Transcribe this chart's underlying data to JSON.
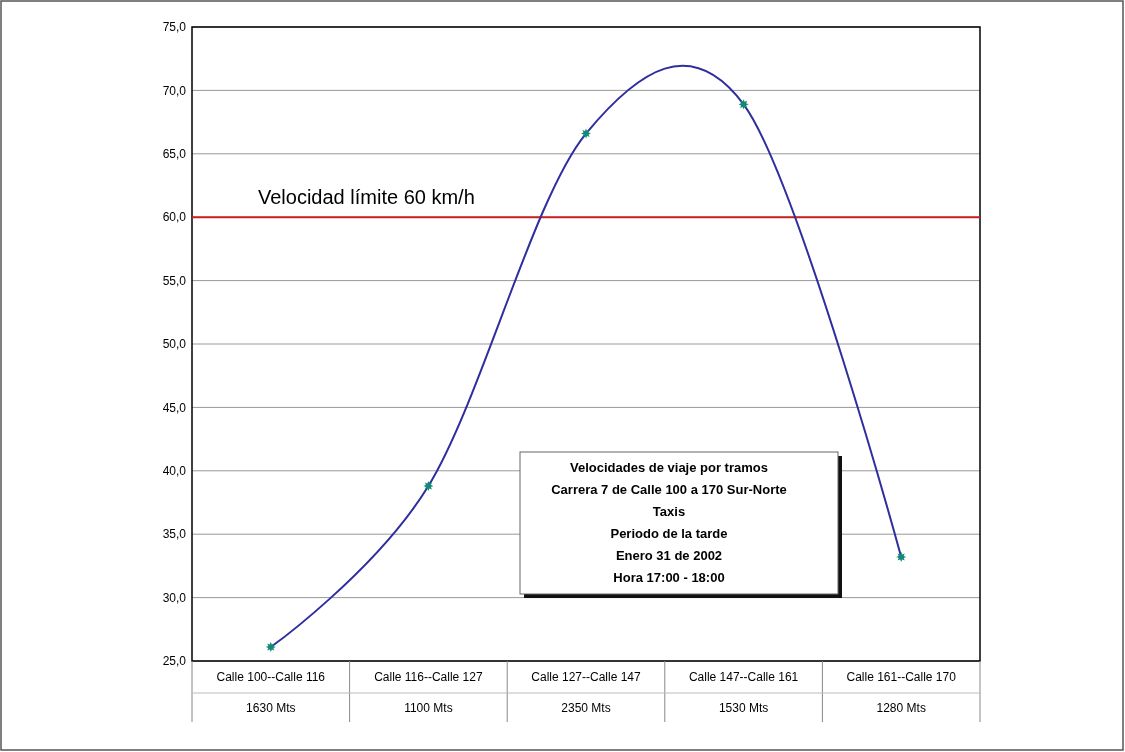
{
  "chart_data": {
    "type": "line",
    "title": "Velocidades de viaje por tramos\nCarrera 7 de Calle 100 a 170 Sur-Norte\nTaxis\nPeriodo de la tarde\nEnero 31 de 2002\nHora 17:00 - 18:00",
    "categories": [
      "Calle 100--Calle 116",
      "Calle 116--Calle 127",
      "Calle 127--Calle 147",
      "Calle 147--Calle 161",
      "Calle 161--Calle 170"
    ],
    "series": [
      {
        "color": "#2e2e9e",
        "values": [
          26.1,
          38.8,
          66.6,
          68.9,
          33.2
        ]
      }
    ],
    "marker": "star",
    "ylim": [
      25,
      75
    ],
    "yticks": [
      {
        "value": 25,
        "label": "25,0"
      },
      {
        "value": 30,
        "label": "30,0"
      },
      {
        "value": 35,
        "label": "35,0"
      },
      {
        "value": 40,
        "label": "40,0"
      },
      {
        "value": 45,
        "label": "45,0"
      },
      {
        "value": 50,
        "label": "50,0"
      },
      {
        "value": 55,
        "label": "55,0"
      },
      {
        "value": 60,
        "label": "60,0"
      },
      {
        "value": 65,
        "label": "65,0"
      },
      {
        "value": 70,
        "label": "70,0"
      },
      {
        "value": 75,
        "label": "75,0"
      }
    ],
    "grid": "y",
    "ref_lines": [
      {
        "axis": "y",
        "value": 60,
        "label": "Velocidad límite 60 km/h",
        "color": "#cc1f1f"
      }
    ],
    "annotations": [
      "1630 Mts",
      "1100 Mts",
      "2350 Mts",
      "1530 Mts",
      "1280 Mts"
    ]
  }
}
